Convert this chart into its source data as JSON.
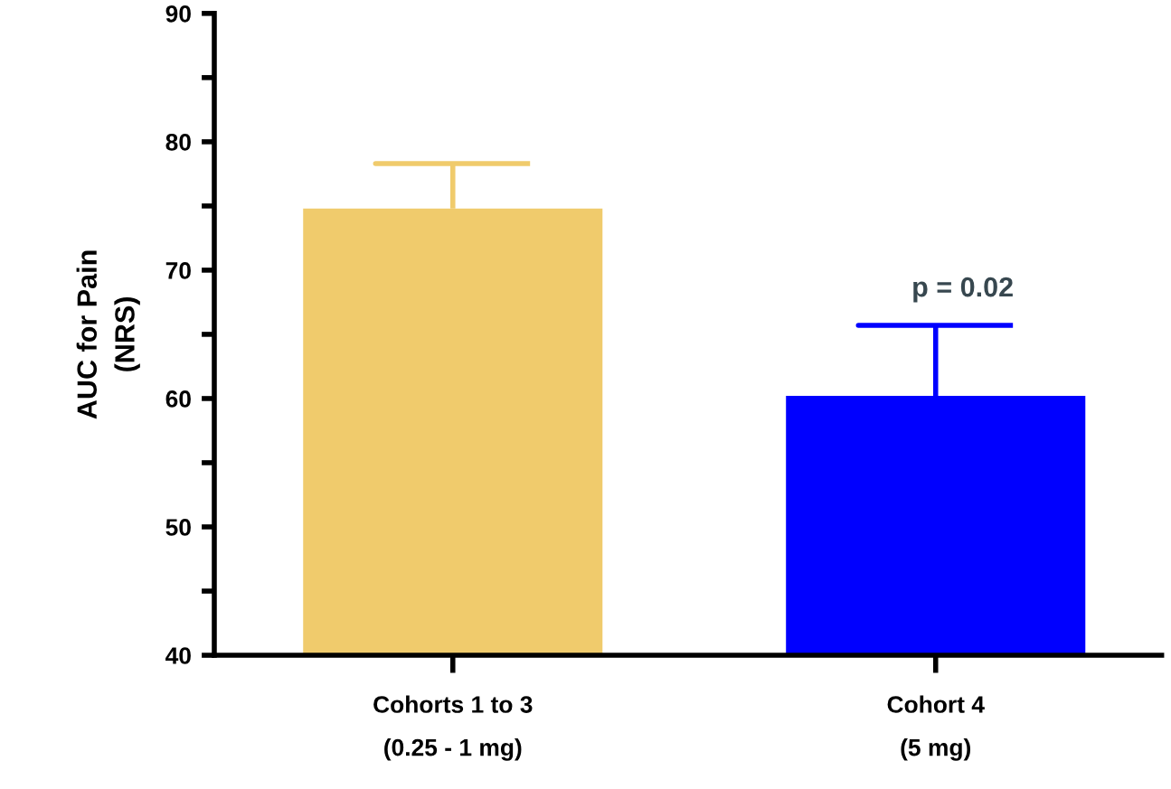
{
  "chart_data": {
    "type": "bar",
    "ylabel": "AUC for Pain\n(NRS)",
    "categories": [
      "Cohorts 1 to 3\n(0.25 - 1 mg)",
      "Cohort 4\n(5 mg)"
    ],
    "values": [
      74.8,
      60.2
    ],
    "colors": [
      "#f0cb6c",
      "#0000ff"
    ],
    "errors": [
      [
        74.8,
        78.3
      ],
      [
        60.2,
        65.7
      ]
    ],
    "ylim": [
      40,
      90
    ],
    "yticks": [
      40,
      {
        "value": 45,
        "label": null
      },
      50,
      {
        "value": 55,
        "label": null
      },
      60,
      {
        "value": 65,
        "label": null
      },
      70,
      {
        "value": 75,
        "label": null
      },
      80,
      {
        "value": 85,
        "label": null
      },
      90
    ],
    "annotations": [
      "p = 0.02"
    ],
    "grid": false,
    "legend": false
  }
}
